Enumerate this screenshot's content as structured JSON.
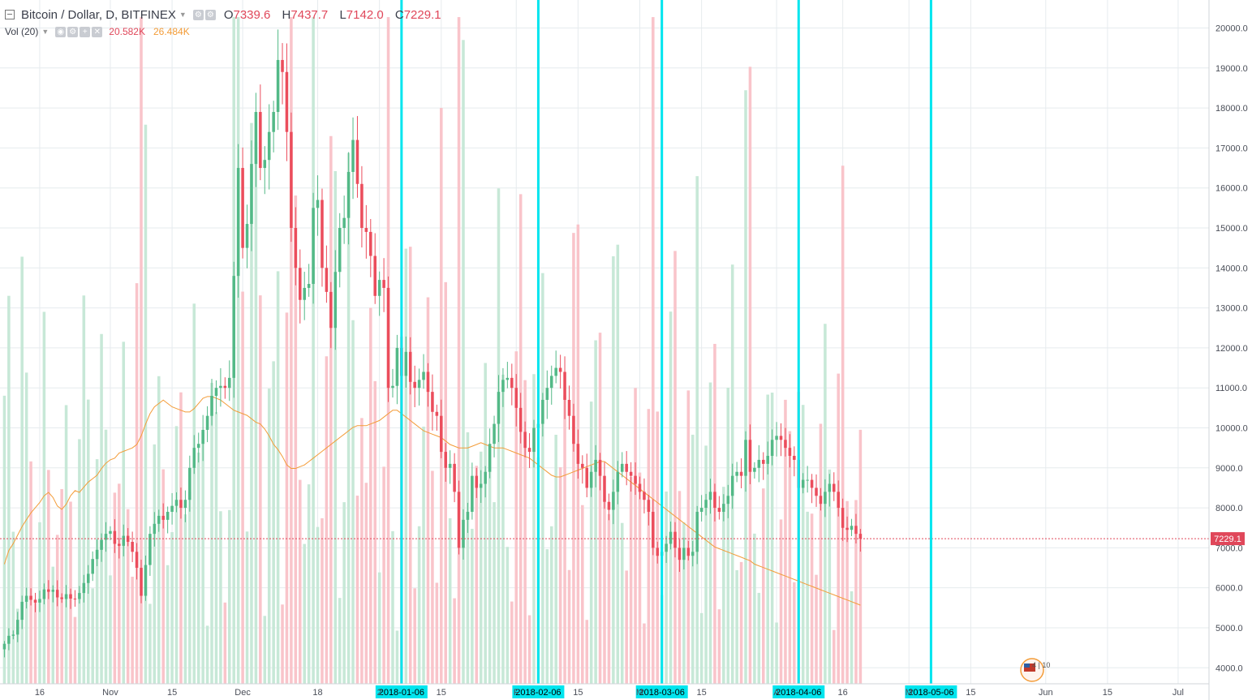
{
  "header": {
    "symbol": "Bitcoin / Dollar, D, BITFINEX",
    "ohlc": [
      {
        "label": "O",
        "value": "7339.6"
      },
      {
        "label": "H",
        "value": "7437.7"
      },
      {
        "label": "L",
        "value": "7142.0"
      },
      {
        "label": "C",
        "value": "7229.1"
      }
    ]
  },
  "volume_legend": {
    "label": "Vol (20)",
    "value1": "20.582K",
    "value2": "26.484K"
  },
  "colors": {
    "up": "#53b987",
    "down": "#eb4d5c",
    "up_vol": "#c7e8d7",
    "down_vol": "#f9c4ca",
    "ma": "#f39c38",
    "vline": "#00e5ee",
    "grid": "#e6ebee",
    "price_line": "#e0475a"
  },
  "price_label": "7229.1",
  "time_axis": [
    {
      "date": "2017-10-16",
      "label": "16"
    },
    {
      "date": "2017-11-01",
      "label": "Nov"
    },
    {
      "date": "2017-11-15",
      "label": "15"
    },
    {
      "date": "2017-12-01",
      "label": "Dec"
    },
    {
      "date": "2017-12-18",
      "label": "18"
    },
    {
      "date": "2018-01-01",
      "label": "2"
    },
    {
      "date": "2018-01-15",
      "label": "15"
    },
    {
      "date": "2018-02-01",
      "label": "F"
    },
    {
      "date": "2018-02-15",
      "label": "15"
    },
    {
      "date": "2018-03-01",
      "label": "M"
    },
    {
      "date": "2018-03-15",
      "label": "15"
    },
    {
      "date": "2018-04-01",
      "label": "A"
    },
    {
      "date": "2018-04-16",
      "label": "16"
    },
    {
      "date": "2018-05-01",
      "label": "M"
    },
    {
      "date": "2018-05-15",
      "label": "15"
    },
    {
      "date": "2018-06-01",
      "label": "Jun"
    },
    {
      "date": "2018-06-15",
      "label": "15"
    },
    {
      "date": "2018-07-01",
      "label": "Jul"
    }
  ],
  "vertical_markers": [
    {
      "date": "2018-01-06",
      "label": "2018-01-06"
    },
    {
      "date": "2018-02-06",
      "label": "2018-02-06"
    },
    {
      "date": "2018-03-06",
      "label": "2018-03-06"
    },
    {
      "date": "2018-04-06",
      "label": "2018-04-06"
    },
    {
      "date": "2018-05-06",
      "label": "2018-05-06"
    }
  ],
  "watermark": "4 | 10",
  "chart_data": {
    "type": "candlestick",
    "title": "Bitcoin / Dollar, D, BITFINEX",
    "x_start": "2017-10-07",
    "x_end": "2018-07-08",
    "ylim": [
      3600,
      20700
    ],
    "y_ticks": [
      "4000.0",
      "5000.0",
      "6000.0",
      "7000.0",
      "8000.0",
      "9000.0",
      "10000.0",
      "11000.0",
      "12000.0",
      "13000.0",
      "14000.0",
      "15000.0",
      "16000.0",
      "17000.0",
      "18000.0",
      "19000.0",
      "20000.0"
    ],
    "y_tick_values": [
      4000,
      5000,
      6000,
      7000,
      8000,
      9000,
      10000,
      11000,
      12000,
      13000,
      14000,
      15000,
      16000,
      17000,
      18000,
      19000,
      20000
    ],
    "start_date": "2017-10-08",
    "closes": [
      4600,
      4800,
      4830,
      5200,
      5650,
      5800,
      5700,
      5630,
      5720,
      5960,
      5900,
      5950,
      5760,
      5720,
      5840,
      5730,
      5720,
      5870,
      6120,
      6350,
      6720,
      6950,
      7200,
      7350,
      7420,
      7100,
      7050,
      7300,
      7150,
      6900,
      6500,
      5800,
      6570,
      7350,
      7600,
      7800,
      7700,
      7900,
      8050,
      8200,
      8000,
      8200,
      9000,
      9500,
      9600,
      9950,
      10300,
      10800,
      11000,
      11050,
      11000,
      11250,
      13800,
      16500,
      14500,
      15100,
      16600,
      17900,
      16500,
      16700,
      17400,
      17900,
      19200,
      18900,
      17400,
      15000,
      14000,
      13200,
      13500,
      13600,
      15500,
      15700,
      14000,
      13400,
      12500,
      13900,
      15000,
      15250,
      16400,
      17200,
      16100,
      15000,
      14900,
      14300,
      13300,
      13700,
      13500,
      11000,
      11050,
      12000,
      11300,
      11900,
      11150,
      11000,
      11200,
      11400,
      10900,
      10400,
      10300,
      9400,
      9000,
      9100,
      8400,
      7000,
      7700,
      7900,
      8800,
      8500,
      8600,
      8900,
      9600,
      10100,
      10900,
      11200,
      11250,
      11000,
      10500,
      9900,
      9500,
      9400,
      10000,
      10100,
      10700,
      11000,
      11300,
      11500,
      11400,
      10700,
      10300,
      9600,
      9100,
      9000,
      8500,
      8900,
      9200,
      8800,
      8150,
      7950,
      8400,
      8900,
      9100,
      8900,
      8800,
      8600,
      8400,
      8200,
      7900,
      7000,
      6800,
      6900,
      7100,
      7400,
      7000,
      6700,
      7000,
      6800,
      6900,
      7900,
      8000,
      8200,
      8400,
      8000,
      7900,
      8100,
      8300,
      8800,
      8900,
      8800,
      9700,
      8900,
      9000,
      9200,
      9100,
      9300,
      9700,
      9800,
      9700,
      9500,
      9300,
      9200,
      8500,
      8700,
      8700,
      8500,
      8300,
      8100,
      8400,
      8600,
      8400,
      8000,
      7500,
      7450,
      7550,
      7350,
      7229.1
    ],
    "ma_values": [
      4300,
      4380,
      4420,
      4470,
      4520,
      4560,
      4600,
      4630,
      4660,
      4700,
      4720,
      4690,
      4640,
      4620,
      4650,
      4700,
      4730,
      4720,
      4750,
      4780,
      4800,
      4820,
      4860,
      4890,
      4910,
      4920,
      4950,
      4960,
      4970,
      4980,
      5000,
      5050,
      5120,
      5180,
      5220,
      5240,
      5260,
      5240,
      5220,
      5210,
      5200,
      5190,
      5190,
      5210,
      5240,
      5270,
      5280,
      5280,
      5270,
      5260,
      5240,
      5220,
      5200,
      5190,
      5180,
      5170,
      5150,
      5130,
      5120,
      5090,
      5050,
      5000,
      4970,
      4930,
      4880,
      4860,
      4860,
      4870,
      4880,
      4900,
      4920,
      4940,
      4960,
      4980,
      5000,
      5020,
      5040,
      5060,
      5080,
      5100,
      5110,
      5110,
      5110,
      5120,
      5130,
      5140,
      5160,
      5180,
      5200,
      5200,
      5180,
      5160,
      5140,
      5120,
      5100,
      5080,
      5070,
      5060,
      5050,
      5040,
      5020,
      5000,
      4990,
      4980,
      4980,
      4980,
      4990,
      5000,
      5010,
      5000,
      4990,
      4980,
      4980,
      4980,
      4970,
      4960,
      4950,
      4940,
      4930,
      4920,
      4900,
      4880,
      4860,
      4840,
      4820,
      4810,
      4810,
      4820,
      4830,
      4840,
      4850,
      4860,
      4870,
      4880,
      4890,
      4900,
      4900,
      4880,
      4860,
      4840,
      4820,
      4800,
      4780,
      4760,
      4740,
      4720,
      4700,
      4680,
      4660,
      4640,
      4620,
      4600,
      4580,
      4560,
      4540,
      4520,
      4500,
      4480,
      4460,
      4440,
      4420,
      4400,
      4390,
      4380,
      4370,
      4360,
      4350,
      4340,
      4330,
      4320,
      4300,
      4290,
      4280,
      4270,
      4260,
      4250,
      4240,
      4230,
      4220,
      4210,
      4200,
      4190,
      4180,
      4170,
      4160,
      4150,
      4140,
      4130,
      4120,
      4110,
      4100,
      4090,
      4080,
      4070,
      4060,
      4050,
      4040,
      4030,
      4020,
      4010,
      4000
    ],
    "volume_ylim": [
      3600,
      7600
    ],
    "series": [
      {
        "name": "Bitcoin / Dollar",
        "type": "candlestick"
      },
      {
        "name": "Vol (20)",
        "type": "volume"
      }
    ]
  }
}
